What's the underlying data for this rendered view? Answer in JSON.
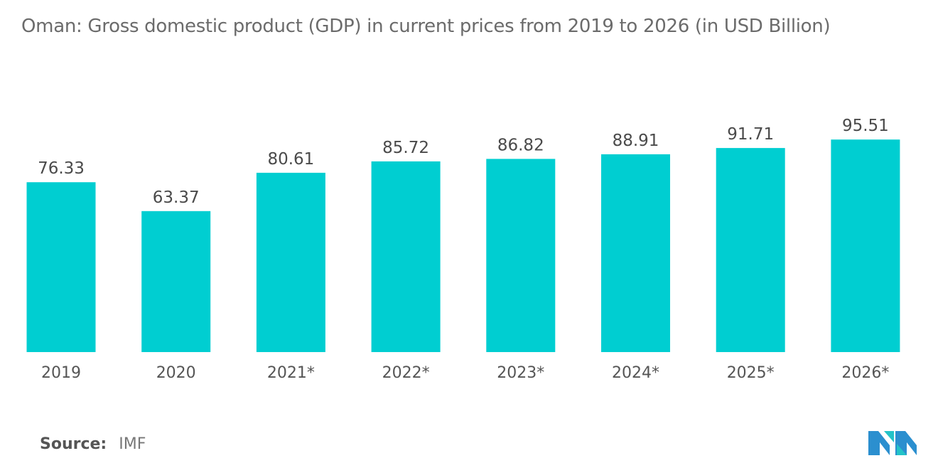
{
  "title": "Oman: Gross domestic product (GDP) in current prices from 2019 to 2026 (in USD Billion)",
  "source": {
    "label": "Source:",
    "value": "IMF"
  },
  "colors": {
    "bar": "#00CED1",
    "text": "#4a4a4a",
    "axis": "#555555"
  },
  "logo": {
    "icon": "mordor-intelligence-logo-icon"
  },
  "chart_data": {
    "type": "bar",
    "title": "Oman: Gross domestic product (GDP) in current prices from 2019 to 2026 (in USD Billion)",
    "xlabel": "",
    "ylabel": "",
    "categories": [
      "2019",
      "2020",
      "2021*",
      "2022*",
      "2023*",
      "2024*",
      "2025*",
      "2026*"
    ],
    "values": [
      76.33,
      63.37,
      80.61,
      85.72,
      86.82,
      88.91,
      91.71,
      95.51
    ],
    "value_labels": [
      "76.33",
      "63.37",
      "80.61",
      "85.72",
      "86.82",
      "88.91",
      "91.71",
      "95.51"
    ],
    "ylim": [
      0,
      100
    ],
    "grid": false,
    "legend": "none"
  }
}
